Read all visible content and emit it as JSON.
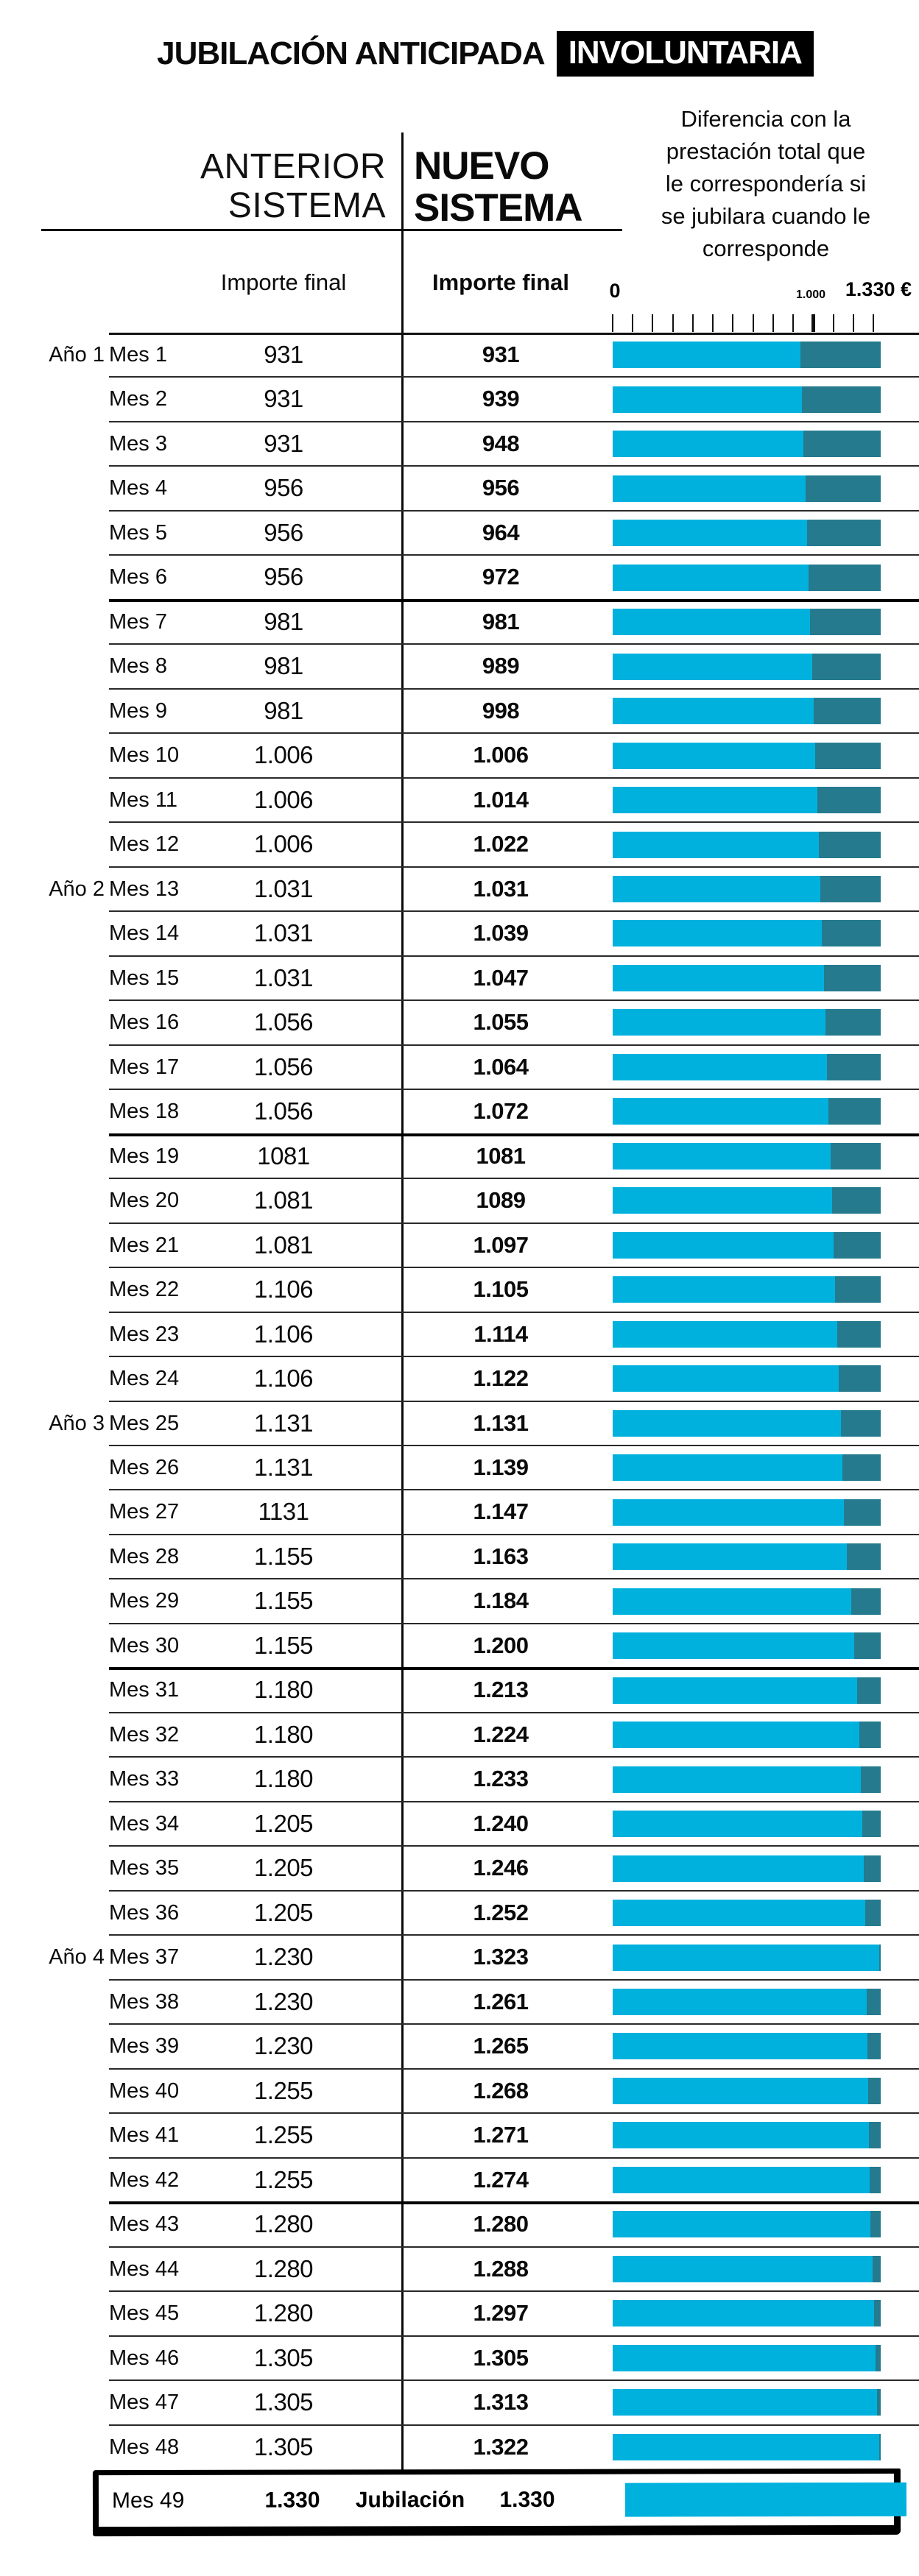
{
  "title": {
    "main": "JUBILACIÓN ANTICIPADA",
    "highlight": "INVOLUNTARIA"
  },
  "columns": {
    "anterior": {
      "line1": "ANTERIOR",
      "line2": "SISTEMA",
      "subheader": "Importe final"
    },
    "nuevo": {
      "line1": "NUEVO",
      "line2": "SISTEMA",
      "subheader": "Importe final"
    }
  },
  "annotation": {
    "text": "Diferencia con la prestación total que le correspondería si se jubilara cuando le corresponde",
    "lines": [
      "Diferencia con la",
      "prestación total que",
      "le correspondería si",
      "se jubilara cuando le",
      "corresponde"
    ]
  },
  "axis": {
    "zero_label": "0",
    "mid_label": "1.000",
    "max_label": "1.330 €",
    "min": 0,
    "mid": 1000,
    "max": 1330,
    "tick_count": 14,
    "tick_step": 100
  },
  "colors": {
    "importe_bar": "#00b1de",
    "diferencia_bar": "#257a8d",
    "highlight_box": "#000000"
  },
  "rows": [
    {
      "ano": "Año 1",
      "mes": "Mes 1",
      "anterior": "931",
      "nuevo": "931"
    },
    {
      "ano": null,
      "mes": "Mes 2",
      "anterior": "931",
      "nuevo": "939"
    },
    {
      "ano": null,
      "mes": "Mes 3",
      "anterior": "931",
      "nuevo": "948"
    },
    {
      "ano": null,
      "mes": "Mes 4",
      "anterior": "956",
      "nuevo": "956"
    },
    {
      "ano": null,
      "mes": "Mes 5",
      "anterior": "956",
      "nuevo": "964"
    },
    {
      "ano": null,
      "mes": "Mes 6",
      "anterior": "956",
      "nuevo": "972"
    },
    {
      "ano": null,
      "mes": "Mes 7",
      "anterior": "981",
      "nuevo": "981"
    },
    {
      "ano": null,
      "mes": "Mes 8",
      "anterior": "981",
      "nuevo": "989"
    },
    {
      "ano": null,
      "mes": "Mes 9",
      "anterior": "981",
      "nuevo": "998"
    },
    {
      "ano": null,
      "mes": "Mes 10",
      "anterior": "1.006",
      "nuevo": "1.006"
    },
    {
      "ano": null,
      "mes": "Mes 11",
      "anterior": "1.006",
      "nuevo": "1.014"
    },
    {
      "ano": null,
      "mes": "Mes 12",
      "anterior": "1.006",
      "nuevo": "1.022"
    },
    {
      "ano": "Año 2",
      "mes": "Mes 13",
      "anterior": "1.031",
      "nuevo": "1.031"
    },
    {
      "ano": null,
      "mes": "Mes 14",
      "anterior": "1.031",
      "nuevo": "1.039"
    },
    {
      "ano": null,
      "mes": "Mes 15",
      "anterior": "1.031",
      "nuevo": "1.047"
    },
    {
      "ano": null,
      "mes": "Mes 16",
      "anterior": "1.056",
      "nuevo": "1.055"
    },
    {
      "ano": null,
      "mes": "Mes 17",
      "anterior": "1.056",
      "nuevo": "1.064"
    },
    {
      "ano": null,
      "mes": "Mes 18",
      "anterior": "1.056",
      "nuevo": "1.072"
    },
    {
      "ano": null,
      "mes": "Mes 19",
      "anterior": "1081",
      "nuevo": "1081"
    },
    {
      "ano": null,
      "mes": "Mes 20",
      "anterior": "1.081",
      "nuevo": "1089"
    },
    {
      "ano": null,
      "mes": "Mes 21",
      "anterior": "1.081",
      "nuevo": "1.097"
    },
    {
      "ano": null,
      "mes": "Mes 22",
      "anterior": "1.106",
      "nuevo": "1.105"
    },
    {
      "ano": null,
      "mes": "Mes 23",
      "anterior": "1.106",
      "nuevo": "1.114"
    },
    {
      "ano": null,
      "mes": "Mes 24",
      "anterior": "1.106",
      "nuevo": "1.122"
    },
    {
      "ano": "Año 3",
      "mes": "Mes 25",
      "anterior": "1.131",
      "nuevo": "1.131"
    },
    {
      "ano": null,
      "mes": "Mes 26",
      "anterior": "1.131",
      "nuevo": "1.139"
    },
    {
      "ano": null,
      "mes": "Mes 27",
      "anterior": "1131",
      "nuevo": "1.147"
    },
    {
      "ano": null,
      "mes": "Mes 28",
      "anterior": "1.155",
      "nuevo": "1.163"
    },
    {
      "ano": null,
      "mes": "Mes 29",
      "anterior": "1.155",
      "nuevo": "1.184"
    },
    {
      "ano": null,
      "mes": "Mes 30",
      "anterior": "1.155",
      "nuevo": "1.200"
    },
    {
      "ano": null,
      "mes": "Mes 31",
      "anterior": "1.180",
      "nuevo": "1.213"
    },
    {
      "ano": null,
      "mes": "Mes 32",
      "anterior": "1.180",
      "nuevo": "1.224"
    },
    {
      "ano": null,
      "mes": "Mes 33",
      "anterior": "1.180",
      "nuevo": "1.233"
    },
    {
      "ano": null,
      "mes": "Mes 34",
      "anterior": "1.205",
      "nuevo": "1.240"
    },
    {
      "ano": null,
      "mes": "Mes 35",
      "anterior": "1.205",
      "nuevo": "1.246"
    },
    {
      "ano": null,
      "mes": "Mes 36",
      "anterior": "1.205",
      "nuevo": "1.252"
    },
    {
      "ano": "Año 4",
      "mes": "Mes 37",
      "anterior": "1.230",
      "nuevo": "1.323"
    },
    {
      "ano": null,
      "mes": "Mes 38",
      "anterior": "1.230",
      "nuevo": "1.261"
    },
    {
      "ano": null,
      "mes": "Mes 39",
      "anterior": "1.230",
      "nuevo": "1.265"
    },
    {
      "ano": null,
      "mes": "Mes 40",
      "anterior": "1.255",
      "nuevo": "1.268"
    },
    {
      "ano": null,
      "mes": "Mes 41",
      "anterior": "1.255",
      "nuevo": "1.271"
    },
    {
      "ano": null,
      "mes": "Mes 42",
      "anterior": "1.255",
      "nuevo": "1.274"
    },
    {
      "ano": null,
      "mes": "Mes 43",
      "anterior": "1.280",
      "nuevo": "1.280"
    },
    {
      "ano": null,
      "mes": "Mes 44",
      "anterior": "1.280",
      "nuevo": "1.288"
    },
    {
      "ano": null,
      "mes": "Mes 45",
      "anterior": "1.280",
      "nuevo": "1.297"
    },
    {
      "ano": null,
      "mes": "Mes 46",
      "anterior": "1.305",
      "nuevo": "1.305"
    },
    {
      "ano": null,
      "mes": "Mes 47",
      "anterior": "1.305",
      "nuevo": "1.313"
    },
    {
      "ano": null,
      "mes": "Mes 48",
      "anterior": "1.305",
      "nuevo": "1.322"
    }
  ],
  "final_row": {
    "mes": "Mes 49",
    "anterior": "1.330",
    "label": "Jubilación",
    "nuevo": "1.330"
  },
  "chart_data": {
    "type": "bar",
    "title": "JUBILACIÓN ANTICIPADA INVOLUNTARIA",
    "subtitle": "Diferencia con la prestación total que le correspondería si se jubilara cuando le corresponde",
    "orientation": "horizontal",
    "stacked": true,
    "grid": false,
    "legend_position": "none",
    "xlim": [
      0,
      1330
    ],
    "bar_total": 1330,
    "axis_tick_values": [
      0,
      100,
      200,
      300,
      400,
      500,
      600,
      700,
      800,
      900,
      1000,
      1100,
      1200,
      1300
    ],
    "axis_labels_shown": [
      "0",
      "1.000",
      "1.330 €"
    ],
    "categories": [
      "Mes 1",
      "Mes 2",
      "Mes 3",
      "Mes 4",
      "Mes 5",
      "Mes 6",
      "Mes 7",
      "Mes 8",
      "Mes 9",
      "Mes 10",
      "Mes 11",
      "Mes 12",
      "Mes 13",
      "Mes 14",
      "Mes 15",
      "Mes 16",
      "Mes 17",
      "Mes 18",
      "Mes 19",
      "Mes 20",
      "Mes 21",
      "Mes 22",
      "Mes 23",
      "Mes 24",
      "Mes 25",
      "Mes 26",
      "Mes 27",
      "Mes 28",
      "Mes 29",
      "Mes 30",
      "Mes 31",
      "Mes 32",
      "Mes 33",
      "Mes 34",
      "Mes 35",
      "Mes 36",
      "Mes 37",
      "Mes 38",
      "Mes 39",
      "Mes 40",
      "Mes 41",
      "Mes 42",
      "Mes 43",
      "Mes 44",
      "Mes 45",
      "Mes 46",
      "Mes 47",
      "Mes 48",
      "Mes 49"
    ],
    "year_groups": [
      {
        "label": "Año 1",
        "starts_at": "Mes 1"
      },
      {
        "label": "Año 2",
        "starts_at": "Mes 13"
      },
      {
        "label": "Año 3",
        "starts_at": "Mes 25"
      },
      {
        "label": "Año 4",
        "starts_at": "Mes 37"
      }
    ],
    "series": [
      {
        "name": "Anterior sistema — Importe final",
        "values": [
          931,
          931,
          931,
          956,
          956,
          956,
          981,
          981,
          981,
          1006,
          1006,
          1006,
          1031,
          1031,
          1031,
          1056,
          1056,
          1056,
          1081,
          1081,
          1081,
          1106,
          1106,
          1106,
          1131,
          1131,
          1131,
          1155,
          1155,
          1155,
          1180,
          1180,
          1180,
          1205,
          1205,
          1205,
          1230,
          1230,
          1230,
          1255,
          1255,
          1255,
          1280,
          1280,
          1280,
          1305,
          1305,
          1305,
          1330
        ]
      },
      {
        "name": "Nuevo sistema — Importe final (barra azul clara)",
        "values": [
          931,
          939,
          948,
          956,
          964,
          972,
          981,
          989,
          998,
          1006,
          1014,
          1022,
          1031,
          1039,
          1047,
          1055,
          1064,
          1072,
          1081,
          1089,
          1097,
          1105,
          1114,
          1122,
          1131,
          1139,
          1147,
          1163,
          1184,
          1200,
          1213,
          1224,
          1233,
          1240,
          1246,
          1252,
          1323,
          1261,
          1265,
          1268,
          1271,
          1274,
          1280,
          1288,
          1297,
          1305,
          1313,
          1322,
          1330
        ]
      },
      {
        "name": "Diferencia hasta la prestación total (barra verde azulada)",
        "values": [
          399,
          391,
          382,
          374,
          366,
          358,
          349,
          341,
          332,
          324,
          316,
          308,
          299,
          291,
          283,
          275,
          266,
          258,
          249,
          241,
          233,
          225,
          216,
          208,
          199,
          191,
          183,
          167,
          146,
          130,
          117,
          106,
          97,
          90,
          84,
          78,
          7,
          69,
          65,
          62,
          59,
          56,
          50,
          42,
          33,
          25,
          17,
          8,
          0
        ]
      }
    ],
    "annotations": [
      "Mes 49 destacado con recuadro negro: Jubilación, 1.330"
    ]
  }
}
